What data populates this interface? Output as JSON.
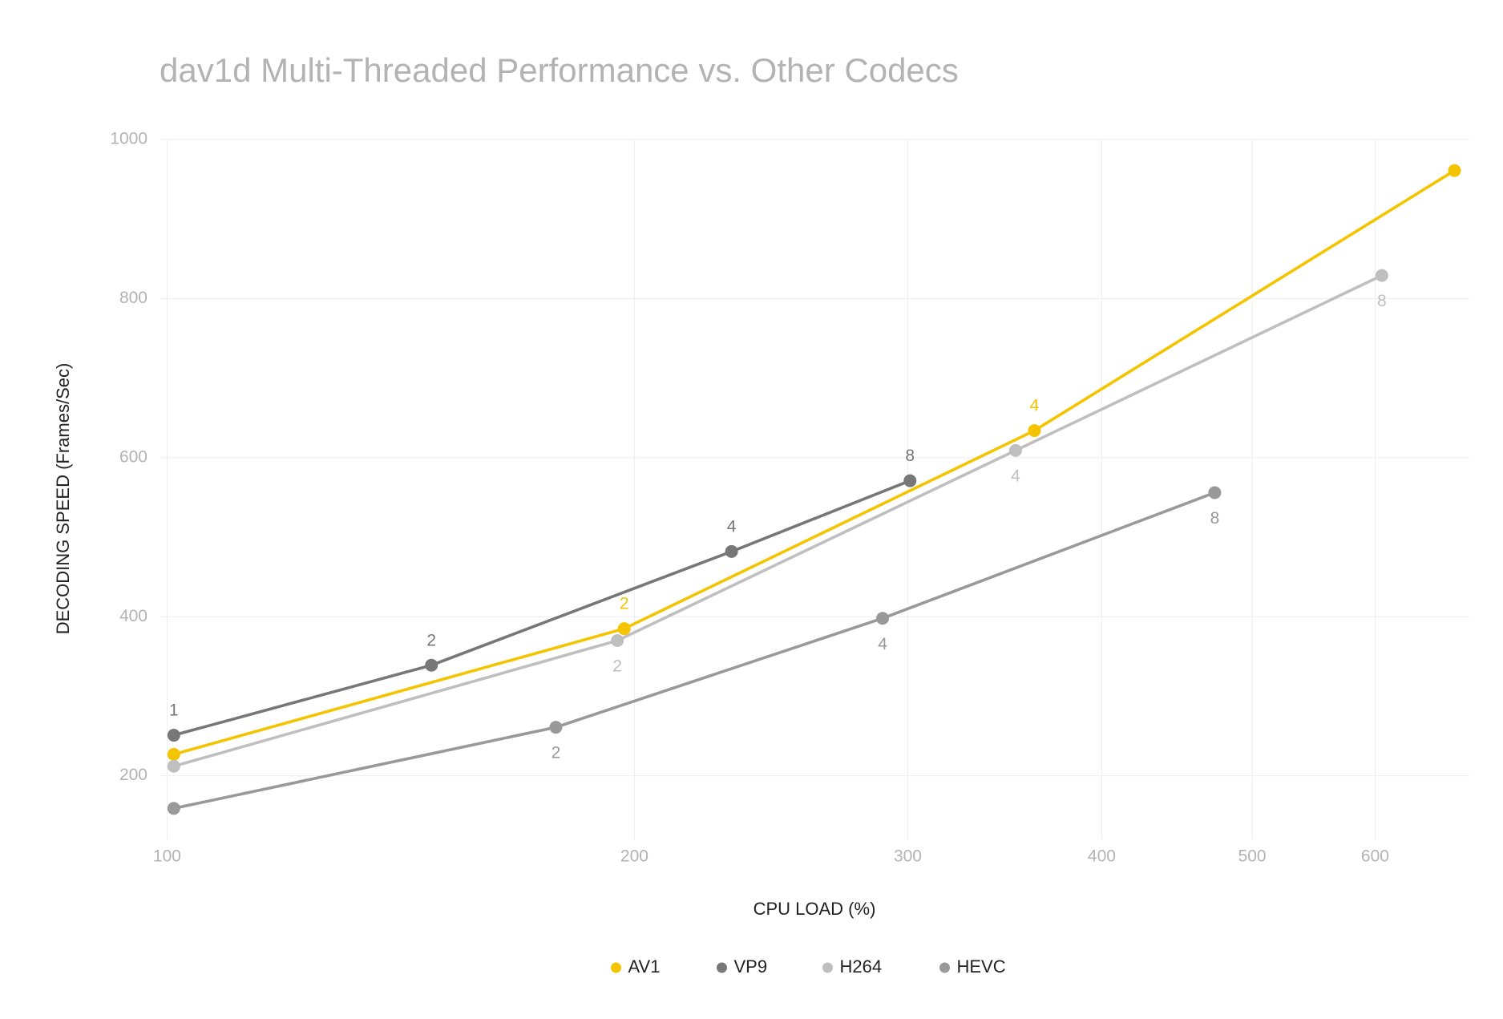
{
  "chart_data": {
    "type": "line",
    "title": "dav1d Multi-Threaded Performance vs. Other Codecs",
    "x_label": "CPU LOAD (%)",
    "y_label": "DECODING SPEED (Frames/Sec)",
    "x_scale": "log",
    "xlim": [
      99,
      690
    ],
    "xticks": [
      100,
      200,
      300,
      400,
      500,
      600
    ],
    "ylim": [
      120,
      1000
    ],
    "yticks": [
      200,
      400,
      600,
      800,
      1000
    ],
    "grid": true,
    "legend": "bottom",
    "series": [
      {
        "name": "AV1",
        "color": "#f5c400",
        "label_position": "above",
        "x": [
          101,
          197,
          362,
          675
        ],
        "values": [
          227,
          385,
          634,
          961
        ],
        "labels": [
          null,
          2,
          4,
          null
        ]
      },
      {
        "name": "VP9",
        "color": "#777777",
        "label_position": "above",
        "x": [
          101,
          148,
          231,
          301
        ],
        "values": [
          251,
          339,
          482,
          571
        ],
        "labels": [
          1,
          2,
          4,
          8
        ]
      },
      {
        "name": "H264",
        "color": "#bfbfbf",
        "label_position": "below",
        "x": [
          101,
          195,
          352,
          606
        ],
        "values": [
          212,
          370,
          609,
          829
        ],
        "labels": [
          null,
          2,
          4,
          8
        ]
      },
      {
        "name": "HEVC",
        "color": "#999999",
        "label_position": "below",
        "x": [
          101,
          178,
          289,
          473
        ],
        "values": [
          159,
          261,
          398,
          556
        ],
        "labels": [
          null,
          2,
          4,
          8
        ]
      }
    ]
  }
}
